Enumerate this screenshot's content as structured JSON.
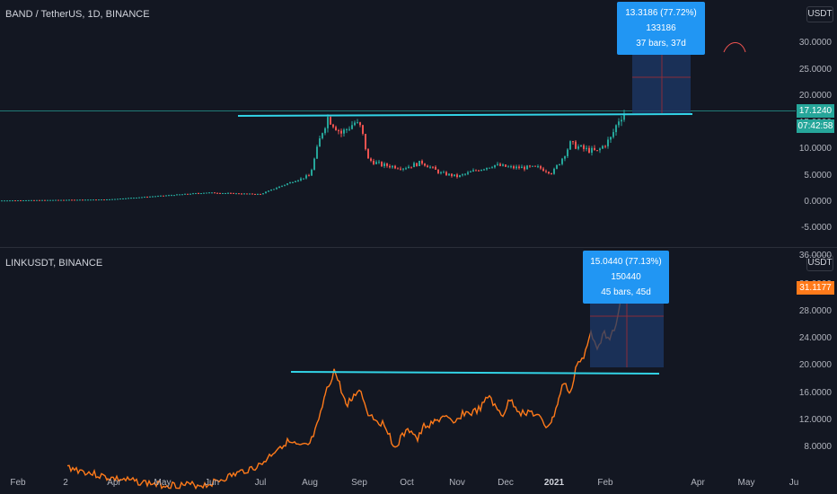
{
  "colors": {
    "background": "#131722",
    "up": "#26a69a",
    "down": "#ef5350",
    "line": "#ff7a1a",
    "trendline": "#32d3e6",
    "box": "#1e3a6a",
    "tooltip": "#2196f3"
  },
  "top_pane": {
    "title": "BAND / TetherUS, 1D, BINANCE",
    "unit": "USDT",
    "axis_ticks": [
      "30.0000",
      "25.0000",
      "20.0000",
      "15.0000",
      "10.0000",
      "5.0000",
      "0.0000",
      "-5.0000"
    ],
    "price_tag": "17.1240",
    "countdown_tag": "07:42:58",
    "measure_line1": "13.3186 (77.72%) 133186",
    "measure_line2": "37 bars, 37d"
  },
  "bottom_pane": {
    "title": "LINKUSDT, BINANCE",
    "unit": "USDT",
    "axis_ticks": [
      "36.0000",
      "32.0000",
      "28.0000",
      "24.0000",
      "20.0000",
      "16.0000",
      "12.0000",
      "8.0000"
    ],
    "price_tag": "31.1177",
    "measure_line1": "15.0440 (77.13%) 150440",
    "measure_line2": "45 bars, 45d"
  },
  "time_axis": {
    "labels": [
      "Feb",
      "2",
      "Apr",
      "May",
      "Jun",
      "Jul",
      "Aug",
      "Sep",
      "Oct",
      "Nov",
      "Dec",
      "2021",
      "Feb",
      "Apr",
      "May",
      "Ju"
    ]
  }
}
